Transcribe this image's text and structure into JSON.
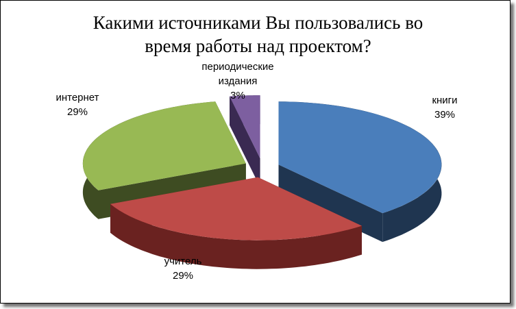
{
  "chart_data": {
    "type": "pie3d",
    "title": "Какими источниками Вы пользовались во время работы над проектом?",
    "categories": [
      "книги",
      "учитель",
      "интернет",
      "периодические издания"
    ],
    "values": [
      39,
      29,
      29,
      3
    ],
    "value_labels": [
      "39%",
      "29%",
      "29%",
      "3%"
    ],
    "colors": [
      "#4a7ebb",
      "#be4b48",
      "#98b954",
      "#7d5fa0"
    ],
    "side_colors": [
      "#1f3550",
      "#6a2220",
      "#3e4c22",
      "#3a2a52"
    ]
  }
}
